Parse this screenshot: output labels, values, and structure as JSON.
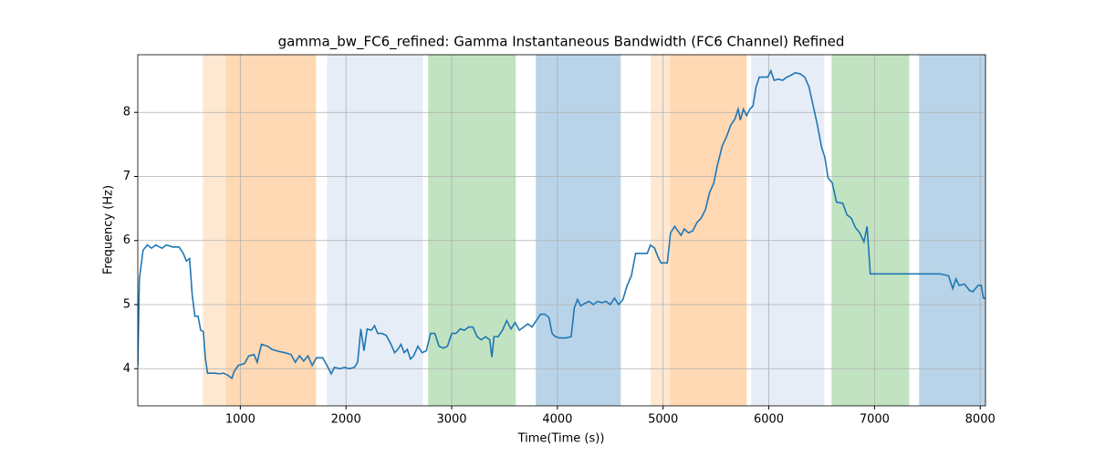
{
  "chart_data": {
    "type": "line",
    "title": "gamma_bw_FC6_refined: Gamma Instantaneous Bandwidth (FC6 Channel) Refined",
    "xlabel": "Time(Time (s))",
    "ylabel": "Frequency (Hz)",
    "xlim": [
      30,
      8050
    ],
    "ylim": [
      3.42,
      8.9
    ],
    "xticks": [
      1000,
      2000,
      3000,
      4000,
      5000,
      6000,
      7000,
      8000
    ],
    "yticks": [
      4,
      5,
      6,
      7,
      8
    ],
    "grid": true,
    "spans": [
      {
        "x": [
          646,
          862
        ],
        "color": "#ffe8d1"
      },
      {
        "x": [
          862,
          1716
        ],
        "color": "#ffd8b4"
      },
      {
        "x": [
          1820,
          2727
        ],
        "color": "#e6edf7"
      },
      {
        "x": [
          2777,
          3606
        ],
        "color": "#c1e3c1"
      },
      {
        "x": [
          3796,
          4599
        ],
        "color": "#b9d4e8"
      },
      {
        "x": [
          4884,
          5066
        ],
        "color": "#ffe8d1"
      },
      {
        "x": [
          5066,
          5791
        ],
        "color": "#ffd8b4"
      },
      {
        "x": [
          5834,
          6525
        ],
        "color": "#e6edf7"
      },
      {
        "x": [
          6594,
          7328
        ],
        "color": "#c1e3c1"
      },
      {
        "x": [
          7422,
          8052
        ],
        "color": "#b9d4e8"
      }
    ],
    "x": [
      30,
      45,
      80,
      120,
      160,
      200,
      260,
      300,
      360,
      420,
      460,
      490,
      520,
      545,
      570,
      600,
      625,
      650,
      670,
      690,
      760,
      800,
      840,
      880,
      920,
      940,
      980,
      1040,
      1080,
      1130,
      1160,
      1200,
      1260,
      1300,
      1360,
      1420,
      1480,
      1520,
      1560,
      1600,
      1640,
      1680,
      1720,
      1780,
      1820,
      1860,
      1890,
      1940,
      1990,
      2030,
      2080,
      2110,
      2140,
      2170,
      2200,
      2240,
      2270,
      2300,
      2340,
      2380,
      2420,
      2460,
      2490,
      2520,
      2550,
      2580,
      2610,
      2640,
      2680,
      2720,
      2760,
      2800,
      2840,
      2880,
      2920,
      2960,
      3000,
      3040,
      3080,
      3120,
      3160,
      3200,
      3240,
      3280,
      3320,
      3360,
      3380,
      3400,
      3440,
      3480,
      3520,
      3560,
      3600,
      3640,
      3680,
      3720,
      3760,
      3800,
      3840,
      3880,
      3920,
      3950,
      3980,
      4020,
      4080,
      4130,
      4160,
      4190,
      4220,
      4260,
      4300,
      4340,
      4380,
      4420,
      4460,
      4500,
      4540,
      4580,
      4620,
      4660,
      4700,
      4740,
      4800,
      4850,
      4880,
      4920,
      4950,
      4980,
      5040,
      5070,
      5110,
      5140,
      5170,
      5200,
      5240,
      5280,
      5320,
      5360,
      5400,
      5440,
      5480,
      5510,
      5560,
      5600,
      5640,
      5680,
      5710,
      5730,
      5760,
      5790,
      5820,
      5850,
      5880,
      5910,
      5950,
      5990,
      6020,
      6050,
      6090,
      6130,
      6170,
      6210,
      6250,
      6300,
      6340,
      6380,
      6420,
      6460,
      6500,
      6530,
      6560,
      6600,
      6640,
      6700,
      6740,
      6780,
      6820,
      6860,
      6900,
      6930,
      6960,
      7000,
      7500,
      7620,
      7700,
      7740,
      7770,
      7800,
      7850,
      7900,
      7930,
      7980,
      8010,
      8030,
      8050
    ],
    "series": [
      {
        "name": "gamma_bw",
        "color": "#1f77b4",
        "values": [
          4.05,
          5.4,
          5.85,
          5.93,
          5.88,
          5.93,
          5.88,
          5.93,
          5.9,
          5.9,
          5.8,
          5.68,
          5.72,
          5.15,
          4.82,
          4.82,
          4.6,
          4.58,
          4.15,
          3.93,
          3.93,
          3.92,
          3.93,
          3.9,
          3.85,
          3.95,
          4.05,
          4.08,
          4.2,
          4.22,
          4.1,
          4.38,
          4.35,
          4.3,
          4.27,
          4.25,
          4.22,
          4.1,
          4.2,
          4.12,
          4.2,
          4.05,
          4.17,
          4.17,
          4.05,
          3.92,
          4.02,
          4.0,
          4.02,
          4.0,
          4.02,
          4.1,
          4.62,
          4.28,
          4.62,
          4.6,
          4.67,
          4.55,
          4.55,
          4.52,
          4.4,
          4.25,
          4.3,
          4.38,
          4.25,
          4.3,
          4.15,
          4.2,
          4.35,
          4.25,
          4.28,
          4.55,
          4.55,
          4.35,
          4.32,
          4.35,
          4.55,
          4.55,
          4.62,
          4.6,
          4.65,
          4.65,
          4.5,
          4.45,
          4.5,
          4.45,
          4.18,
          4.5,
          4.5,
          4.6,
          4.75,
          4.62,
          4.72,
          4.6,
          4.65,
          4.7,
          4.65,
          4.75,
          4.85,
          4.85,
          4.8,
          4.55,
          4.5,
          4.48,
          4.48,
          4.5,
          4.95,
          5.08,
          4.98,
          5.02,
          5.05,
          5.0,
          5.05,
          5.03,
          5.05,
          5.0,
          5.1,
          5.0,
          5.08,
          5.3,
          5.45,
          5.8,
          5.8,
          5.8,
          5.93,
          5.88,
          5.75,
          5.65,
          5.65,
          6.12,
          6.22,
          6.15,
          6.08,
          6.18,
          6.12,
          6.15,
          6.28,
          6.35,
          6.48,
          6.75,
          6.9,
          7.15,
          7.48,
          7.62,
          7.8,
          7.9,
          8.05,
          7.88,
          8.05,
          7.95,
          8.05,
          8.1,
          8.4,
          8.55,
          8.55,
          8.55,
          8.65,
          8.5,
          8.52,
          8.5,
          8.55,
          8.58,
          8.62,
          8.6,
          8.55,
          8.4,
          8.1,
          7.8,
          7.45,
          7.3,
          6.98,
          6.9,
          6.6,
          6.58,
          6.4,
          6.35,
          6.2,
          6.12,
          5.98,
          6.22,
          5.48,
          5.48,
          5.48,
          5.48,
          5.45,
          5.25,
          5.4,
          5.3,
          5.32,
          5.22,
          5.2,
          5.3,
          5.3,
          5.1,
          5.1
        ]
      }
    ]
  }
}
